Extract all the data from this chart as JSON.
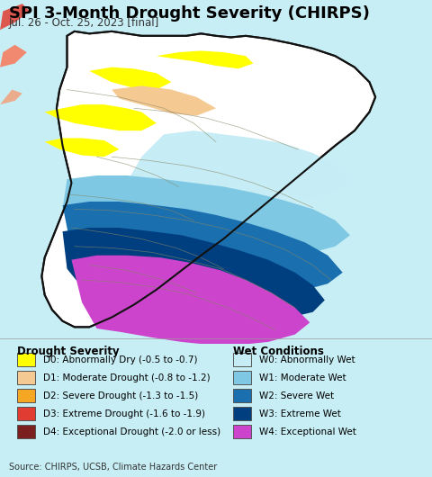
{
  "title": "SPI 3-Month Drought Severity (CHIRPS)",
  "subtitle": "Jul. 26 - Oct. 25, 2023 [final]",
  "source": "Source: CHIRPS, UCSB, Climate Hazards Center",
  "background_color": "#c8eef5",
  "legend_bg_color": "#ddf0f5",
  "drought_labels": [
    "D0: Abnormally Dry (-0.5 to -0.7)",
    "D1: Moderate Drought (-0.8 to -1.2)",
    "D2: Severe Drought (-1.3 to -1.5)",
    "D3: Extreme Drought (-1.6 to -1.9)",
    "D4: Exceptional Drought (-2.0 or less)"
  ],
  "drought_colors": [
    "#ffff00",
    "#f5c992",
    "#f5a623",
    "#e03c31",
    "#7b1f1f"
  ],
  "wet_labels": [
    "W0: Abnormally Wet",
    "W1: Moderate Wet",
    "W2: Severe Wet",
    "W3: Extreme Wet",
    "W4: Exceptional Wet"
  ],
  "wet_colors": [
    "#c6ecf5",
    "#7ec8e3",
    "#1a6faf",
    "#003f7f",
    "#cc44cc"
  ],
  "drought_section_title": "Drought Severity",
  "wet_section_title": "Wet Conditions",
  "title_fontsize": 13,
  "subtitle_fontsize": 8.5,
  "legend_fontsize": 7.5,
  "source_fontsize": 7
}
